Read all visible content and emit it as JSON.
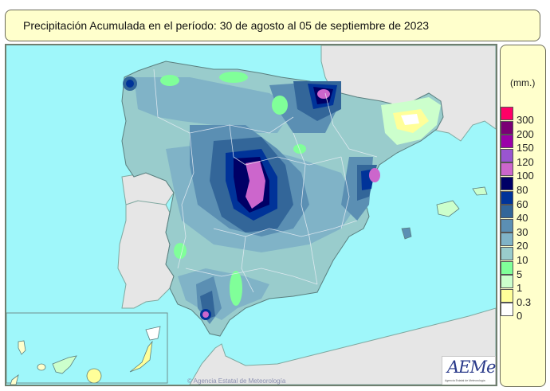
{
  "title": "Precipitación Acumulada en el período: 30  de agosto  al 05  de septiembre de  2023",
  "legend": {
    "unit": "(mm.)",
    "classes": [
      {
        "label": "300",
        "color": "#ff0066"
      },
      {
        "label": "200",
        "color": "#7a0075"
      },
      {
        "label": "150",
        "color": "#9a00a8"
      },
      {
        "label": "120",
        "color": "#9955d0"
      },
      {
        "label": "100",
        "color": "#cc66cc"
      },
      {
        "label": "80",
        "color": "#000066"
      },
      {
        "label": "60",
        "color": "#003399"
      },
      {
        "label": "40",
        "color": "#336699"
      },
      {
        "label": "30",
        "color": "#5b8fb3"
      },
      {
        "label": "20",
        "color": "#80b3c7"
      },
      {
        "label": "10",
        "color": "#99cccc"
      },
      {
        "label": "5",
        "color": "#80ff99"
      },
      {
        "label": "1",
        "color": "#ccffcc"
      },
      {
        "label": "0.3",
        "color": "#ffff99"
      },
      {
        "label": "0",
        "color": "#ffffff"
      }
    ]
  },
  "map": {
    "sea_color": "#9ff7fa",
    "foreign_land_color": "#e6e6e6",
    "province_border_color": "#e8eef5",
    "inset": "Islas Canarias"
  },
  "copyright": "© Agencia Estatal de Meteorología",
  "logo": {
    "text": "AEMet",
    "subtitle": "Agencia Estatal de Meteorología"
  }
}
